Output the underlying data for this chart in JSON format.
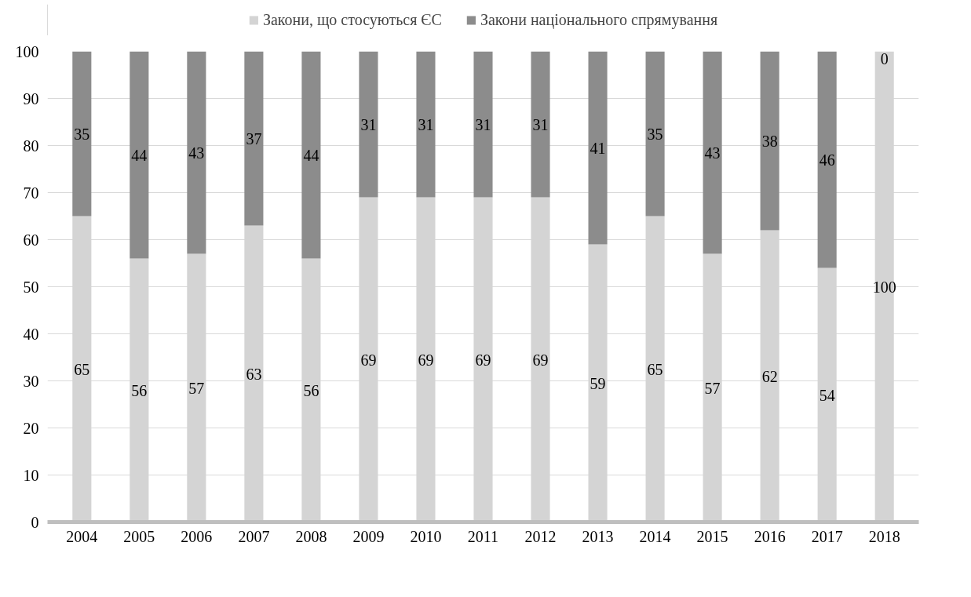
{
  "chart_data": {
    "type": "bar",
    "stacked": true,
    "categories": [
      "2004",
      "2005",
      "2006",
      "2007",
      "2008",
      "2009",
      "2010",
      "2011",
      "2012",
      "2013",
      "2014",
      "2015",
      "2016",
      "2017",
      "2018"
    ],
    "series": [
      {
        "name": "Закони, що стосуються ЄС",
        "color": "#d4d4d4",
        "values": [
          65,
          56,
          57,
          63,
          56,
          69,
          69,
          69,
          69,
          59,
          65,
          57,
          62,
          54,
          100
        ]
      },
      {
        "name": "Закони національного спрямування",
        "color": "#8c8c8c",
        "values": [
          35,
          44,
          43,
          37,
          44,
          31,
          31,
          31,
          31,
          41,
          35,
          43,
          38,
          46,
          0
        ]
      }
    ],
    "ylim": [
      0,
      100
    ],
    "yticks": [
      0,
      10,
      20,
      30,
      40,
      50,
      60,
      70,
      80,
      90,
      100
    ],
    "grid": "y",
    "legend": "top",
    "data_labels": true
  }
}
